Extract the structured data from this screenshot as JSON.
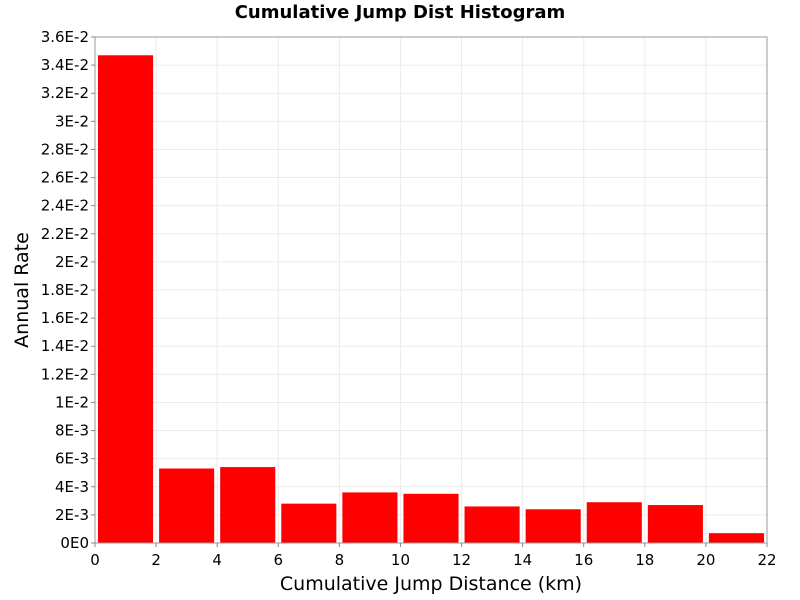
{
  "chart_data": {
    "type": "bar",
    "title": "Cumulative Jump Dist Histogram",
    "xlabel": "Cumulative Jump Distance (km)",
    "ylabel": "Annual Rate",
    "xlim": [
      0,
      22
    ],
    "ylim": [
      0,
      0.036
    ],
    "grid": true,
    "colors": {
      "bar": "#ff0000",
      "grid": "#ebebeb",
      "frame": "#9a9a9a"
    },
    "x_tick_labels": [
      "0",
      "2",
      "4",
      "6",
      "8",
      "10",
      "12",
      "14",
      "16",
      "18",
      "20",
      "22"
    ],
    "y_tick_labels": [
      "0E0",
      "2E-3",
      "4E-3",
      "6E-3",
      "8E-3",
      "1E-2",
      "1.2E-2",
      "1.4E-2",
      "1.6E-2",
      "1.8E-2",
      "2E-2",
      "2.2E-2",
      "2.4E-2",
      "2.6E-2",
      "2.8E-2",
      "3E-2",
      "3.2E-2",
      "3.4E-2",
      "3.6E-2"
    ],
    "bins": [
      {
        "x0": 0,
        "x1": 2,
        "value": 0.0347
      },
      {
        "x0": 2,
        "x1": 4,
        "value": 0.0053
      },
      {
        "x0": 4,
        "x1": 6,
        "value": 0.0054
      },
      {
        "x0": 6,
        "x1": 8,
        "value": 0.0028
      },
      {
        "x0": 8,
        "x1": 10,
        "value": 0.0036
      },
      {
        "x0": 10,
        "x1": 12,
        "value": 0.0035
      },
      {
        "x0": 12,
        "x1": 14,
        "value": 0.0026
      },
      {
        "x0": 14,
        "x1": 16,
        "value": 0.0024
      },
      {
        "x0": 16,
        "x1": 18,
        "value": 0.0029
      },
      {
        "x0": 18,
        "x1": 20,
        "value": 0.0027
      },
      {
        "x0": 20,
        "x1": 22,
        "value": 0.0007
      }
    ]
  }
}
